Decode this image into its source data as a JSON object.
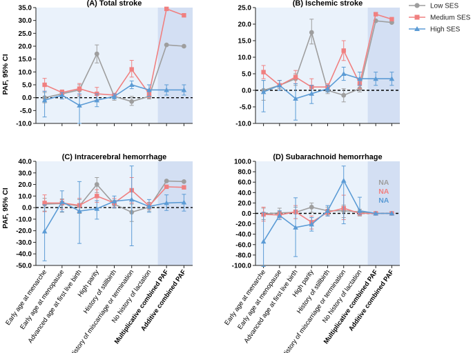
{
  "legend": {
    "position": "top-right",
    "items": [
      {
        "name": "Low SES",
        "color": "#9e9e9e",
        "marker": "circle"
      },
      {
        "name": "Medium SES",
        "color": "#f08080",
        "marker": "square"
      },
      {
        "name": "High SES",
        "color": "#5b9bd5",
        "marker": "triangle"
      }
    ]
  },
  "y_axis_label": "PAF, 95% CI",
  "categories": [
    "Early age at menarche",
    "Early age at menopause",
    "Advanced age at first live birth",
    "High parity",
    "History of stillbirth",
    "History of miscarriage or termination",
    "No history of lactation",
    "Multiplicative combined PAF",
    "Additive combined PAF"
  ],
  "bold_categories": [
    7,
    8
  ],
  "na_labels": [
    "NA",
    "NA",
    "NA"
  ],
  "chart_data": [
    {
      "type": "line",
      "title": "(A) Total stroke",
      "ylim": [
        -10,
        35
      ],
      "yticks": [
        "-10.0",
        "-5.0",
        "0.0",
        "5.0",
        "10.0",
        "15.0",
        "20.0",
        "25.0",
        "30.0",
        "35.0"
      ],
      "ytick_values": [
        -10,
        -5,
        0,
        5,
        10,
        15,
        20,
        25,
        30,
        35
      ],
      "show_x_labels": false,
      "series": [
        {
          "name": "Low SES",
          "values": [
            0.0,
            1.5,
            3.0,
            17.0,
            0.5,
            -1.5,
            0.5,
            20.5,
            20.0
          ],
          "lo": [
            -2.0,
            -0.5,
            0.5,
            13.5,
            -1.0,
            -3.0,
            -0.5,
            null,
            null
          ],
          "hi": [
            2.0,
            3.0,
            5.0,
            20.5,
            1.5,
            0.5,
            1.5,
            null,
            null
          ]
        },
        {
          "name": "Medium SES",
          "values": [
            5.0,
            2.0,
            3.5,
            1.5,
            1.0,
            11.0,
            1.5,
            34.5,
            32.0
          ],
          "lo": [
            2.5,
            0.5,
            1.0,
            -1.0,
            0.0,
            8.0,
            0.0,
            null,
            null
          ],
          "hi": [
            7.5,
            3.0,
            5.5,
            4.0,
            1.5,
            14.5,
            3.0,
            null,
            null
          ]
        },
        {
          "name": "High SES",
          "values": [
            -1.0,
            1.0,
            -3.0,
            -1.0,
            0.5,
            5.0,
            3.0,
            3.0,
            3.0
          ],
          "lo": [
            -7.5,
            -0.5,
            -10.0,
            -3.5,
            -0.5,
            3.5,
            0.5,
            1.0,
            1.0
          ],
          "hi": [
            2.5,
            2.0,
            1.5,
            1.5,
            1.5,
            6.5,
            5.0,
            5.0,
            5.0
          ]
        }
      ]
    },
    {
      "type": "line",
      "title": "(B) Ischemic stroke",
      "ylim": [
        -10,
        25
      ],
      "yticks": [
        "-10.0",
        "-5.0",
        "0.0",
        "5.0",
        "10.0",
        "15.0",
        "20.0",
        "25.0"
      ],
      "ytick_values": [
        -10,
        -5,
        0,
        5,
        10,
        15,
        20,
        25
      ],
      "show_x_labels": false,
      "series": [
        {
          "name": "Low SES",
          "values": [
            0.0,
            1.5,
            3.5,
            17.5,
            0.0,
            -1.5,
            0.5,
            21.0,
            20.5
          ],
          "lo": [
            -3.0,
            0.5,
            1.5,
            14.0,
            -1.0,
            -3.5,
            -0.5,
            null,
            null
          ],
          "hi": [
            3.0,
            3.0,
            5.0,
            21.5,
            1.0,
            0.5,
            1.5,
            null,
            null
          ]
        },
        {
          "name": "Medium SES",
          "values": [
            5.5,
            1.5,
            4.0,
            1.0,
            1.0,
            12.0,
            2.0,
            23.0,
            21.5
          ],
          "lo": [
            3.5,
            0.0,
            2.0,
            -1.5,
            0.0,
            9.0,
            0.5,
            null,
            null
          ],
          "hi": [
            7.5,
            3.0,
            6.0,
            3.5,
            2.0,
            15.0,
            3.5,
            null,
            null
          ]
        },
        {
          "name": "High SES",
          "values": [
            -0.5,
            1.5,
            -2.5,
            -1.0,
            0.5,
            5.0,
            3.5,
            3.5,
            3.5
          ],
          "lo": [
            -6.5,
            0.0,
            -9.0,
            -4.0,
            -0.5,
            3.0,
            1.5,
            1.5,
            1.5
          ],
          "hi": [
            3.0,
            3.0,
            2.0,
            1.5,
            1.5,
            7.0,
            5.5,
            5.5,
            5.5
          ]
        }
      ]
    },
    {
      "type": "line",
      "title": "(C) Intracerebral hemorrhage",
      "ylim": [
        -50,
        40
      ],
      "yticks": [
        "-50.0",
        "-40.0",
        "-30.0",
        "-20.0",
        "-10.0",
        "0.0",
        "10.0",
        "20.0",
        "30.0",
        "40.0"
      ],
      "ytick_values": [
        -50,
        -40,
        -30,
        -20,
        -10,
        0,
        10,
        20,
        30,
        40
      ],
      "show_x_labels": true,
      "series": [
        {
          "name": "Low SES",
          "values": [
            3.0,
            3.5,
            1.5,
            20.0,
            3.0,
            -4.0,
            0.5,
            23.0,
            22.5
          ],
          "lo": [
            -3.0,
            -4.0,
            -5.0,
            13.0,
            -0.5,
            -12.0,
            -3.0,
            null,
            null
          ],
          "hi": [
            8.0,
            7.5,
            7.0,
            26.0,
            6.5,
            3.0,
            4.0,
            null,
            null
          ]
        },
        {
          "name": "Medium SES",
          "values": [
            4.0,
            4.0,
            2.0,
            10.0,
            4.0,
            15.0,
            1.5,
            18.0,
            17.5
          ],
          "lo": [
            -3.5,
            -1.5,
            -3.0,
            4.5,
            0.5,
            4.0,
            -1.5,
            null,
            null
          ],
          "hi": [
            11.0,
            7.0,
            8.0,
            15.5,
            8.0,
            26.0,
            4.5,
            null,
            null
          ]
        },
        {
          "name": "High SES",
          "values": [
            -20.5,
            5.0,
            -3.0,
            -1.0,
            5.5,
            7.0,
            1.0,
            4.0,
            4.5
          ],
          "lo": [
            -46.0,
            -3.5,
            -31.0,
            -10.0,
            0.0,
            -33.0,
            -4.0,
            -2.5,
            -3.0
          ],
          "hi": [
            2.5,
            14.5,
            22.5,
            6.0,
            10.0,
            36.0,
            7.0,
            11.0,
            11.5
          ]
        }
      ]
    },
    {
      "type": "line",
      "title": "(D) Subarachnoid hemorrhage",
      "ylim": [
        -100,
        100
      ],
      "yticks": [
        "-100.0",
        "-80.0",
        "-60.0",
        "-40.0",
        "-20.0",
        "0.0",
        "20.0",
        "40.0",
        "60.0",
        "80.0",
        "100.0"
      ],
      "ytick_values": [
        -100,
        -80,
        -60,
        -40,
        -20,
        0,
        20,
        40,
        60,
        80,
        100
      ],
      "show_x_labels": true,
      "series": [
        {
          "name": "Low SES",
          "values": [
            -1.0,
            1.0,
            2.0,
            12.0,
            5.0,
            5.0,
            3.0,
            0.0,
            0.0
          ],
          "lo": [
            -12.0,
            -6.0,
            -10.0,
            2.0,
            -3.0,
            -8.0,
            -5.0,
            null,
            null
          ],
          "hi": [
            10.0,
            10.0,
            12.0,
            20.0,
            12.0,
            16.0,
            8.0,
            null,
            null
          ]
        },
        {
          "name": "Medium SES",
          "values": [
            -2.0,
            -3.0,
            3.0,
            -17.0,
            2.0,
            10.0,
            0.0,
            0.0,
            0.0
          ],
          "lo": [
            -15.0,
            -9.0,
            -10.0,
            -30.0,
            -5.0,
            -12.0,
            -3.0,
            null,
            null
          ],
          "hi": [
            12.0,
            3.0,
            15.0,
            -5.0,
            8.0,
            35.0,
            3.0,
            null,
            null
          ]
        },
        {
          "name": "High SES",
          "values": [
            -54.0,
            -4.0,
            -27.0,
            -21.0,
            5.0,
            63.0,
            5.0,
            0.0,
            0.0
          ],
          "lo": [
            -102.0,
            -12.0,
            -83.0,
            -34.0,
            -5.0,
            -20.0,
            -2.0,
            null,
            null
          ],
          "hi": [
            2.0,
            5.0,
            30.0,
            -8.0,
            15.0,
            91.0,
            31.0,
            null,
            null
          ]
        }
      ],
      "na_note": true
    }
  ]
}
